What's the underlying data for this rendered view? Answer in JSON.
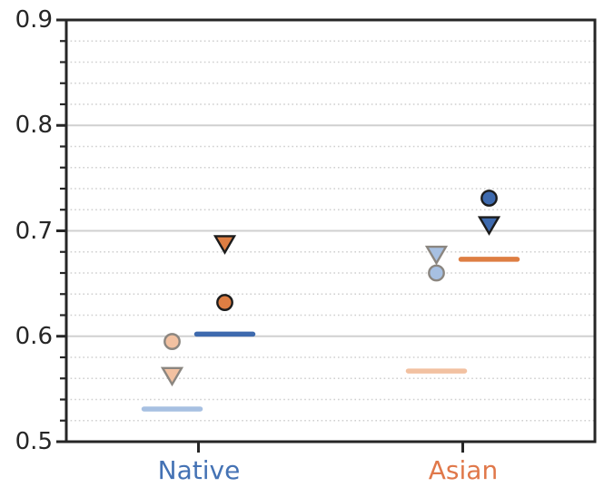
{
  "chart_data": {
    "type": "scatter",
    "title": "",
    "xlabel": "",
    "ylabel": "",
    "categories": [
      "Native",
      "Asian"
    ],
    "category_colors": [
      "#4472b4",
      "#e0784a"
    ],
    "ylim": [
      0.5,
      0.9
    ],
    "yticks": [
      0.5,
      0.6,
      0.7,
      0.8,
      0.9
    ],
    "ytick_labels": [
      "0.5",
      "0.6",
      "0.7",
      "0.8",
      "0.9"
    ],
    "minor_tick_step": 0.02,
    "grid": {
      "major_solid": true,
      "minor_dotted": true
    },
    "legend_position": "none",
    "marker_shapes": [
      "circle",
      "triangle-down",
      "hline"
    ],
    "colors": {
      "dark_blue": "#3e6aae",
      "light_blue": "#a7c0e2",
      "dark_orange": "#de7e43",
      "light_peach": "#f2c1a1",
      "dark_edge": "#1c1c1c",
      "light_edge": "#8b8680",
      "axis": "#262626",
      "grid_major": "#d0d0d0",
      "grid_minor": "#cfcfcf",
      "tick_label": "#262626"
    },
    "column_offsets": {
      "light": -29,
      "dark": 29
    },
    "points": [
      {
        "group": "Native",
        "shade": "dark",
        "marker": "triangle-down",
        "color_key": "dark_orange",
        "value": 0.688
      },
      {
        "group": "Native",
        "shade": "dark",
        "marker": "circle",
        "color_key": "dark_orange",
        "value": 0.632
      },
      {
        "group": "Native",
        "shade": "dark",
        "marker": "hline",
        "color_key": "dark_blue",
        "value": 0.602
      },
      {
        "group": "Native",
        "shade": "light",
        "marker": "circle",
        "color_key": "light_peach",
        "value": 0.595
      },
      {
        "group": "Native",
        "shade": "light",
        "marker": "triangle-down",
        "color_key": "light_peach",
        "value": 0.563
      },
      {
        "group": "Native",
        "shade": "light",
        "marker": "hline",
        "color_key": "light_blue",
        "value": 0.531
      },
      {
        "group": "Asian",
        "shade": "dark",
        "marker": "circle",
        "color_key": "dark_blue",
        "value": 0.731
      },
      {
        "group": "Asian",
        "shade": "dark",
        "marker": "triangle-down",
        "color_key": "dark_blue",
        "value": 0.706
      },
      {
        "group": "Asian",
        "shade": "light",
        "marker": "triangle-down",
        "color_key": "light_blue",
        "value": 0.678
      },
      {
        "group": "Asian",
        "shade": "dark",
        "marker": "hline",
        "color_key": "dark_orange",
        "value": 0.673
      },
      {
        "group": "Asian",
        "shade": "light",
        "marker": "circle",
        "color_key": "light_blue",
        "value": 0.66
      },
      {
        "group": "Asian",
        "shade": "light",
        "marker": "hline",
        "color_key": "light_peach",
        "value": 0.567
      }
    ]
  }
}
